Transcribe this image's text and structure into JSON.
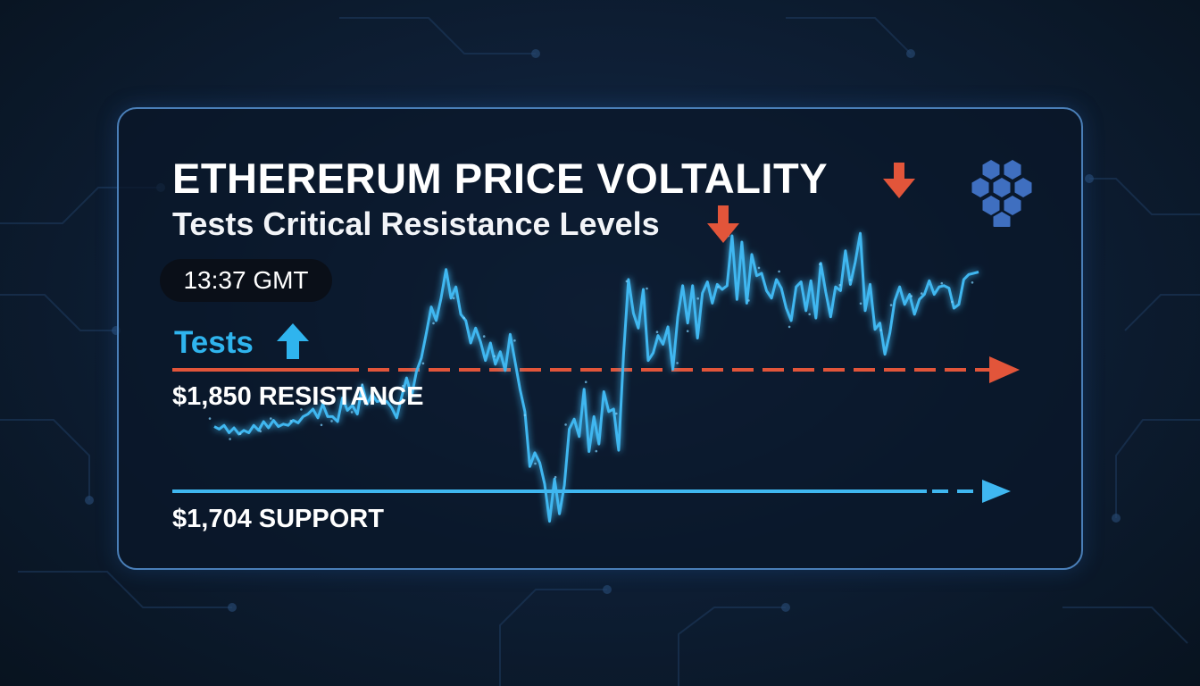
{
  "header": {
    "title": "ETHERERUM PRICE VOLTALITY",
    "subtitle": "Tests Critical Resistance Levels",
    "time": "13:37 GMT",
    "tests_label": "Tests"
  },
  "levels": {
    "resistance_label": "$1,850 RESISTANCE",
    "support_label": "$1,704 SUPPORT"
  },
  "icons": {
    "down_arrow": "arrow-down-icon",
    "up_arrow": "arrow-up-icon",
    "logo": "hexagon-cluster-icon"
  },
  "colors": {
    "background": "#0e1f36",
    "line": "#3fb7f0",
    "resistance": "#e2553a",
    "support": "#3fb7f0",
    "card_border": "#4a7fb8",
    "logo": "#3f6fc0"
  },
  "chart_data": {
    "type": "line",
    "title": "ETHERERUM PRICE VOLTALITY",
    "subtitle": "Tests Critical Resistance Levels",
    "xlabel": "",
    "ylabel": "",
    "ylim": [
      1680,
      1920
    ],
    "grid": false,
    "resistance": 1850,
    "support": 1704,
    "series": [
      {
        "values": [
          1767,
          1765,
          1768,
          1762,
          1766,
          1761,
          1764,
          1762,
          1768,
          1764,
          1771,
          1766,
          1772,
          1767,
          1769,
          1768,
          1772,
          1770,
          1775,
          1777,
          1781,
          1774,
          1785,
          1775,
          1775,
          1771,
          1790,
          1780,
          1784,
          1777,
          1800,
          1785,
          1793,
          1787,
          1788,
          1787,
          1782,
          1774,
          1791,
          1806,
          1791,
          1811,
          1822,
          1842,
          1863,
          1852,
          1870,
          1893,
          1870,
          1879,
          1857,
          1852,
          1834,
          1846,
          1835,
          1820,
          1834,
          1817,
          1827,
          1812,
          1841,
          1819,
          1797,
          1779,
          1735,
          1746,
          1738,
          1721,
          1691,
          1725,
          1697,
          1720,
          1765,
          1773,
          1759,
          1797,
          1747,
          1775,
          1753,
          1795,
          1779,
          1781,
          1748,
          1825,
          1885,
          1858,
          1846,
          1877,
          1820,
          1826,
          1840,
          1833,
          1847,
          1813,
          1855,
          1880,
          1850,
          1880,
          1838,
          1874,
          1883,
          1866,
          1881,
          1877,
          1880,
          1920,
          1869,
          1915,
          1866,
          1905,
          1888,
          1890,
          1876,
          1870,
          1885,
          1878,
          1862,
          1852,
          1879,
          1883,
          1860,
          1884,
          1854,
          1898,
          1875,
          1855,
          1879,
          1876,
          1908,
          1881,
          1899,
          1922,
          1860,
          1881,
          1845,
          1850,
          1825,
          1842,
          1868,
          1879,
          1865,
          1873,
          1857,
          1869,
          1873,
          1884,
          1873,
          1879,
          1880,
          1878,
          1862,
          1865,
          1885,
          1889,
          1890,
          1891
        ]
      }
    ]
  }
}
